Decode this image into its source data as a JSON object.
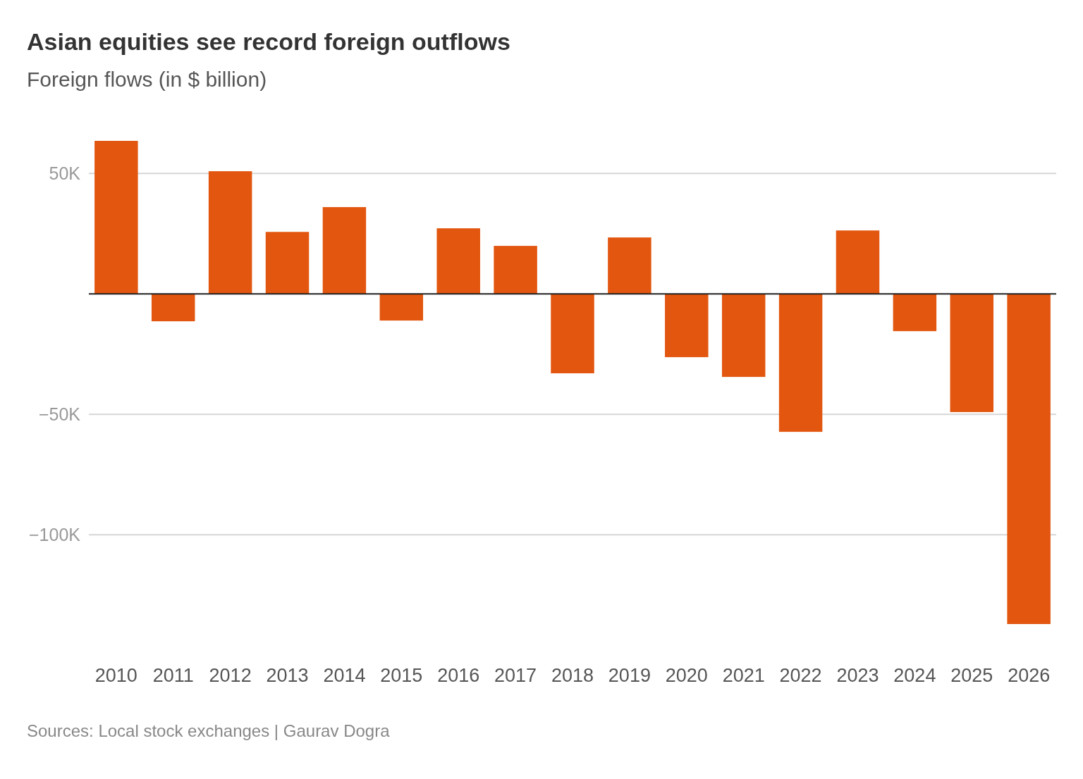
{
  "chart_data": {
    "type": "bar",
    "title": "Asian equities see record foreign outflows",
    "subtitle": "Foreign flows (in $ billion)",
    "categories": [
      "2010",
      "2011",
      "2012",
      "2013",
      "2014",
      "2015",
      "2016",
      "2017",
      "2018",
      "2019",
      "2020",
      "2021",
      "2022",
      "2023",
      "2024",
      "2025",
      "2026"
    ],
    "values": [
      63500,
      -11400,
      50900,
      25700,
      36000,
      -11100,
      27200,
      19900,
      -33000,
      23400,
      -26300,
      -34500,
      -57300,
      26300,
      -15500,
      -49100,
      -137100
    ],
    "color": "#e2560f",
    "ylim": [
      -137100,
      63500
    ],
    "yticks": [
      {
        "value": 50000,
        "label": "50K"
      },
      {
        "value": -50000,
        "label": "−50K"
      },
      {
        "value": -100000,
        "label": "−100K"
      }
    ],
    "grid": "y",
    "annotations": [
      "Sources: Local stock exchanges | Gaurav Dogra"
    ]
  }
}
